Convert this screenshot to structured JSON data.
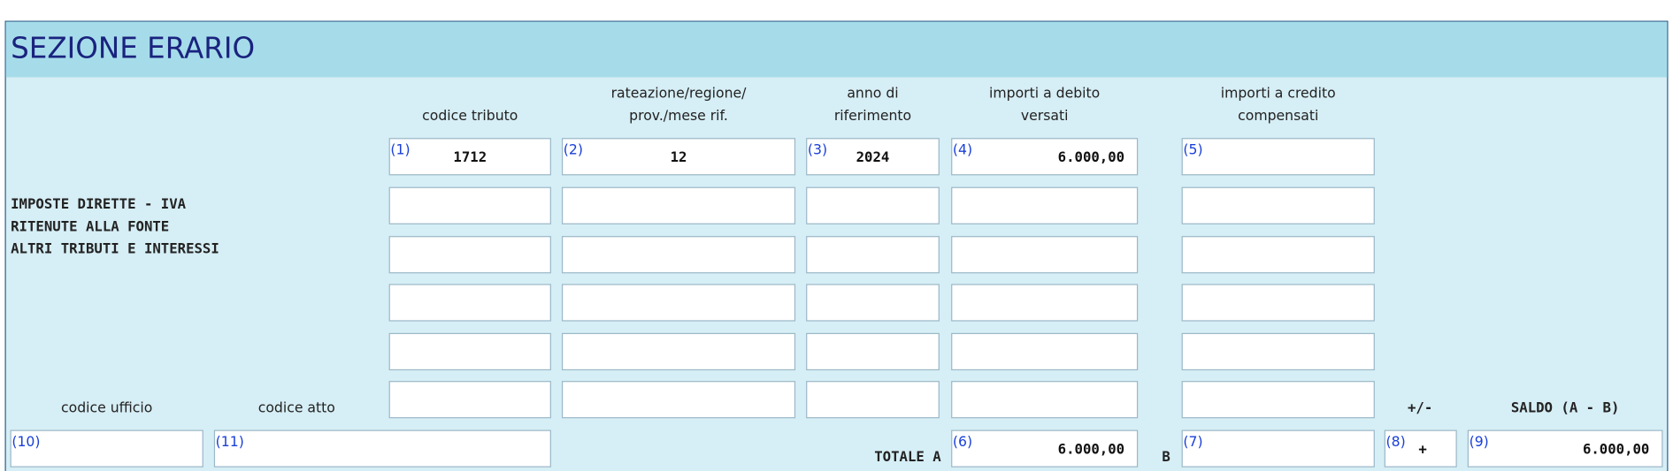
{
  "section": {
    "title": "SEZIONE ERARIO"
  },
  "columns": [
    {
      "lines": [
        "codice tributo"
      ]
    },
    {
      "lines": [
        "rateazione/regione/",
        "prov./mese rif."
      ]
    },
    {
      "lines": [
        "anno di",
        "riferimento"
      ]
    },
    {
      "lines": [
        "importi a debito",
        "versati"
      ]
    },
    {
      "lines": [
        "importi a credito",
        "compensati"
      ]
    }
  ],
  "row_labels": [
    "IMPOSTE DIRETTE - IVA",
    "RITENUTE ALLA FONTE",
    "ALTRI TRIBUTI E INTERESSI"
  ],
  "first_row": [
    {
      "num": "(1)",
      "value": "1712"
    },
    {
      "num": "(2)",
      "value": "12"
    },
    {
      "num": "(3)",
      "value": "2024"
    },
    {
      "num": "(4)",
      "value": "6.000,00"
    },
    {
      "num": "(5)"
    }
  ],
  "footer": {
    "codice_ufficio": "codice ufficio",
    "codice_atto": "codice atto",
    "sign_header": "+/-",
    "saldo_header": "SALDO (A - B)",
    "ufficio_num": "(10)",
    "atto_num": "(11)",
    "totale_a": "TOTALE A",
    "debito_num": "(6)",
    "debito_value": "6.000,00",
    "totale_b": "B",
    "credito_num": "(7)",
    "sign_num": "(8)",
    "sign_value": "+",
    "saldo_num": "(9)",
    "saldo_value": "6.000,00"
  }
}
